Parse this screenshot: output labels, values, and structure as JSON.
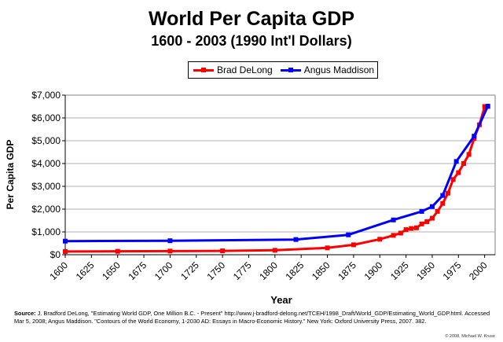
{
  "chart_data": {
    "type": "line",
    "title": "World Per Capita GDP",
    "subtitle": "1600 - 2003 (1990 Int'l Dollars)",
    "xlabel": "Year",
    "ylabel": "Per Capita GDP",
    "xlim": [
      1600,
      2010
    ],
    "ylim": [
      0,
      7000
    ],
    "x_ticks": [
      1600,
      1625,
      1650,
      1675,
      1700,
      1725,
      1750,
      1775,
      1800,
      1825,
      1850,
      1875,
      1900,
      1925,
      1950,
      1975,
      2000
    ],
    "y_ticks": [
      {
        "value": 0,
        "label": "$0"
      },
      {
        "value": 1000,
        "label": "$1,000"
      },
      {
        "value": 2000,
        "label": "$2,000"
      },
      {
        "value": 3000,
        "label": "$3,000"
      },
      {
        "value": 4000,
        "label": "$4,000"
      },
      {
        "value": 5000,
        "label": "$5,000"
      },
      {
        "value": 6000,
        "label": "$6,000"
      },
      {
        "value": 7000,
        "label": "$7,000"
      }
    ],
    "grid": "horizontal",
    "legend_position": "top-center",
    "series": [
      {
        "name": "Brad DeLong",
        "color": "#ff0000",
        "points": [
          [
            1600,
            140
          ],
          [
            1650,
            150
          ],
          [
            1700,
            160
          ],
          [
            1750,
            170
          ],
          [
            1800,
            195
          ],
          [
            1850,
            300
          ],
          [
            1875,
            435
          ],
          [
            1900,
            680
          ],
          [
            1913,
            850
          ],
          [
            1920,
            950
          ],
          [
            1925,
            1100
          ],
          [
            1930,
            1150
          ],
          [
            1935,
            1180
          ],
          [
            1940,
            1350
          ],
          [
            1945,
            1450
          ],
          [
            1950,
            1600
          ],
          [
            1955,
            1900
          ],
          [
            1960,
            2250
          ],
          [
            1965,
            2700
          ],
          [
            1970,
            3300
          ],
          [
            1975,
            3600
          ],
          [
            1980,
            4000
          ],
          [
            1985,
            4400
          ],
          [
            1990,
            5100
          ],
          [
            1995,
            5700
          ],
          [
            2000,
            6500
          ],
          [
            2003,
            6500
          ]
        ]
      },
      {
        "name": "Angus Maddison",
        "color": "#0000ff",
        "points": [
          [
            1600,
            596
          ],
          [
            1700,
            615
          ],
          [
            1820,
            667
          ],
          [
            1870,
            873
          ],
          [
            1913,
            1526
          ],
          [
            1940,
            1900
          ],
          [
            1950,
            2113
          ],
          [
            1960,
            2600
          ],
          [
            1973,
            4091
          ],
          [
            1990,
            5200
          ],
          [
            2003,
            6516
          ]
        ]
      }
    ]
  },
  "footer": {
    "source_label": "Source:",
    "source_text": " J. Bradford DeLong, \"Estimating World GDP, One Million B.C. - Present\" http://www.j-bradford-delong.net/TCEH/1998_Draft/World_GDP/Estimating_World_GDP.html. Accessed Mar 5, 2008; Angus Maddison. \"Contours of the World Economy, 1-2030 AD: Essays in Macro-Economic History.\" New York: Oxford University Press, 2007. 382.",
    "credit": "© 2008, Michael W. Kruse"
  }
}
